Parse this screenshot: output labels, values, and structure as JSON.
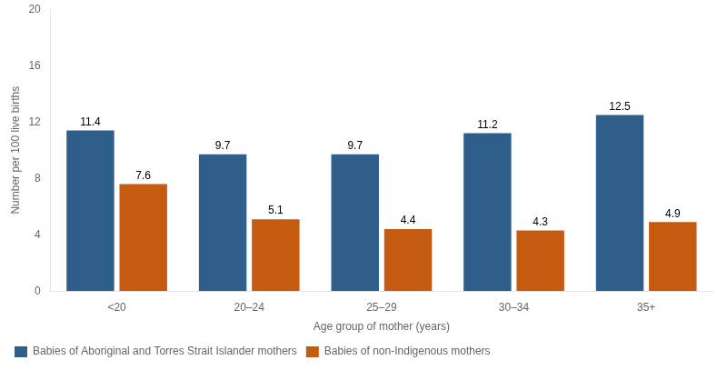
{
  "chart_data": {
    "type": "bar",
    "categories": [
      "<20",
      "20–24",
      "25–29",
      "30–34",
      "35+"
    ],
    "series": [
      {
        "name": "Babies of Aboriginal and Torres Strait Islander mothers",
        "color": "#2E5F8A",
        "values": [
          11.4,
          9.7,
          9.7,
          11.2,
          12.5
        ]
      },
      {
        "name": "Babies of non-Indigenous mothers",
        "color": "#C55A11",
        "values": [
          7.6,
          5.1,
          4.4,
          4.3,
          4.9
        ]
      }
    ],
    "xlabel": "Age group of mother (years)",
    "ylabel": "Number per 100 live births",
    "ylim": [
      0,
      20
    ],
    "yticks": [
      0,
      4,
      8,
      12,
      16,
      20
    ],
    "grid": false,
    "legend": "bottom",
    "data_labels": true
  }
}
